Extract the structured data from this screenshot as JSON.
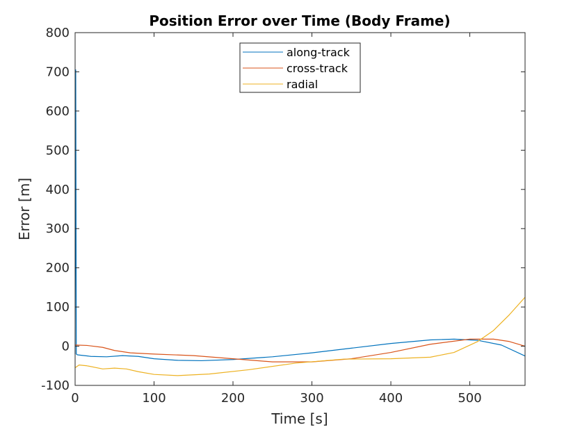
{
  "chart_data": {
    "type": "line",
    "title": "Position Error over Time (Body Frame)",
    "xlabel": "Time [s]",
    "ylabel": "Error [m]",
    "xlim": [
      0,
      570
    ],
    "ylim": [
      -100,
      800
    ],
    "xticks": [
      0,
      100,
      200,
      300,
      400,
      500
    ],
    "yticks": [
      -100,
      0,
      100,
      200,
      300,
      400,
      500,
      600,
      700,
      800
    ],
    "grid": false,
    "legend_position": "top-center",
    "series": [
      {
        "name": "along-track",
        "color": "#0072BD",
        "x": [
          0,
          0.8,
          1.5,
          3,
          20,
          40,
          60,
          80,
          100,
          130,
          160,
          200,
          250,
          300,
          350,
          400,
          450,
          480,
          510,
          540,
          570
        ],
        "y": [
          -20,
          705,
          -20,
          -22,
          -26,
          -27,
          -24,
          -26,
          -32,
          -36,
          -37,
          -34,
          -27,
          -17,
          -5,
          7,
          16,
          18,
          15,
          3,
          -25
        ]
      },
      {
        "name": "cross-track",
        "color": "#D95319",
        "x": [
          0,
          15,
          35,
          50,
          70,
          100,
          150,
          200,
          250,
          300,
          350,
          400,
          450,
          500,
          530,
          550,
          570
        ],
        "y": [
          3,
          2,
          -3,
          -11,
          -17,
          -20,
          -24,
          -32,
          -40,
          -40,
          -32,
          -16,
          5,
          18,
          18,
          12,
          0
        ]
      },
      {
        "name": "radial",
        "color": "#EDB120",
        "x": [
          0,
          5,
          15,
          35,
          50,
          65,
          80,
          100,
          130,
          170,
          220,
          280,
          340,
          400,
          450,
          480,
          510,
          530,
          550,
          570
        ],
        "y": [
          -55,
          -48,
          -50,
          -58,
          -56,
          -58,
          -65,
          -72,
          -75,
          -71,
          -60,
          -43,
          -33,
          -32,
          -28,
          -16,
          12,
          40,
          80,
          125
        ]
      }
    ]
  }
}
